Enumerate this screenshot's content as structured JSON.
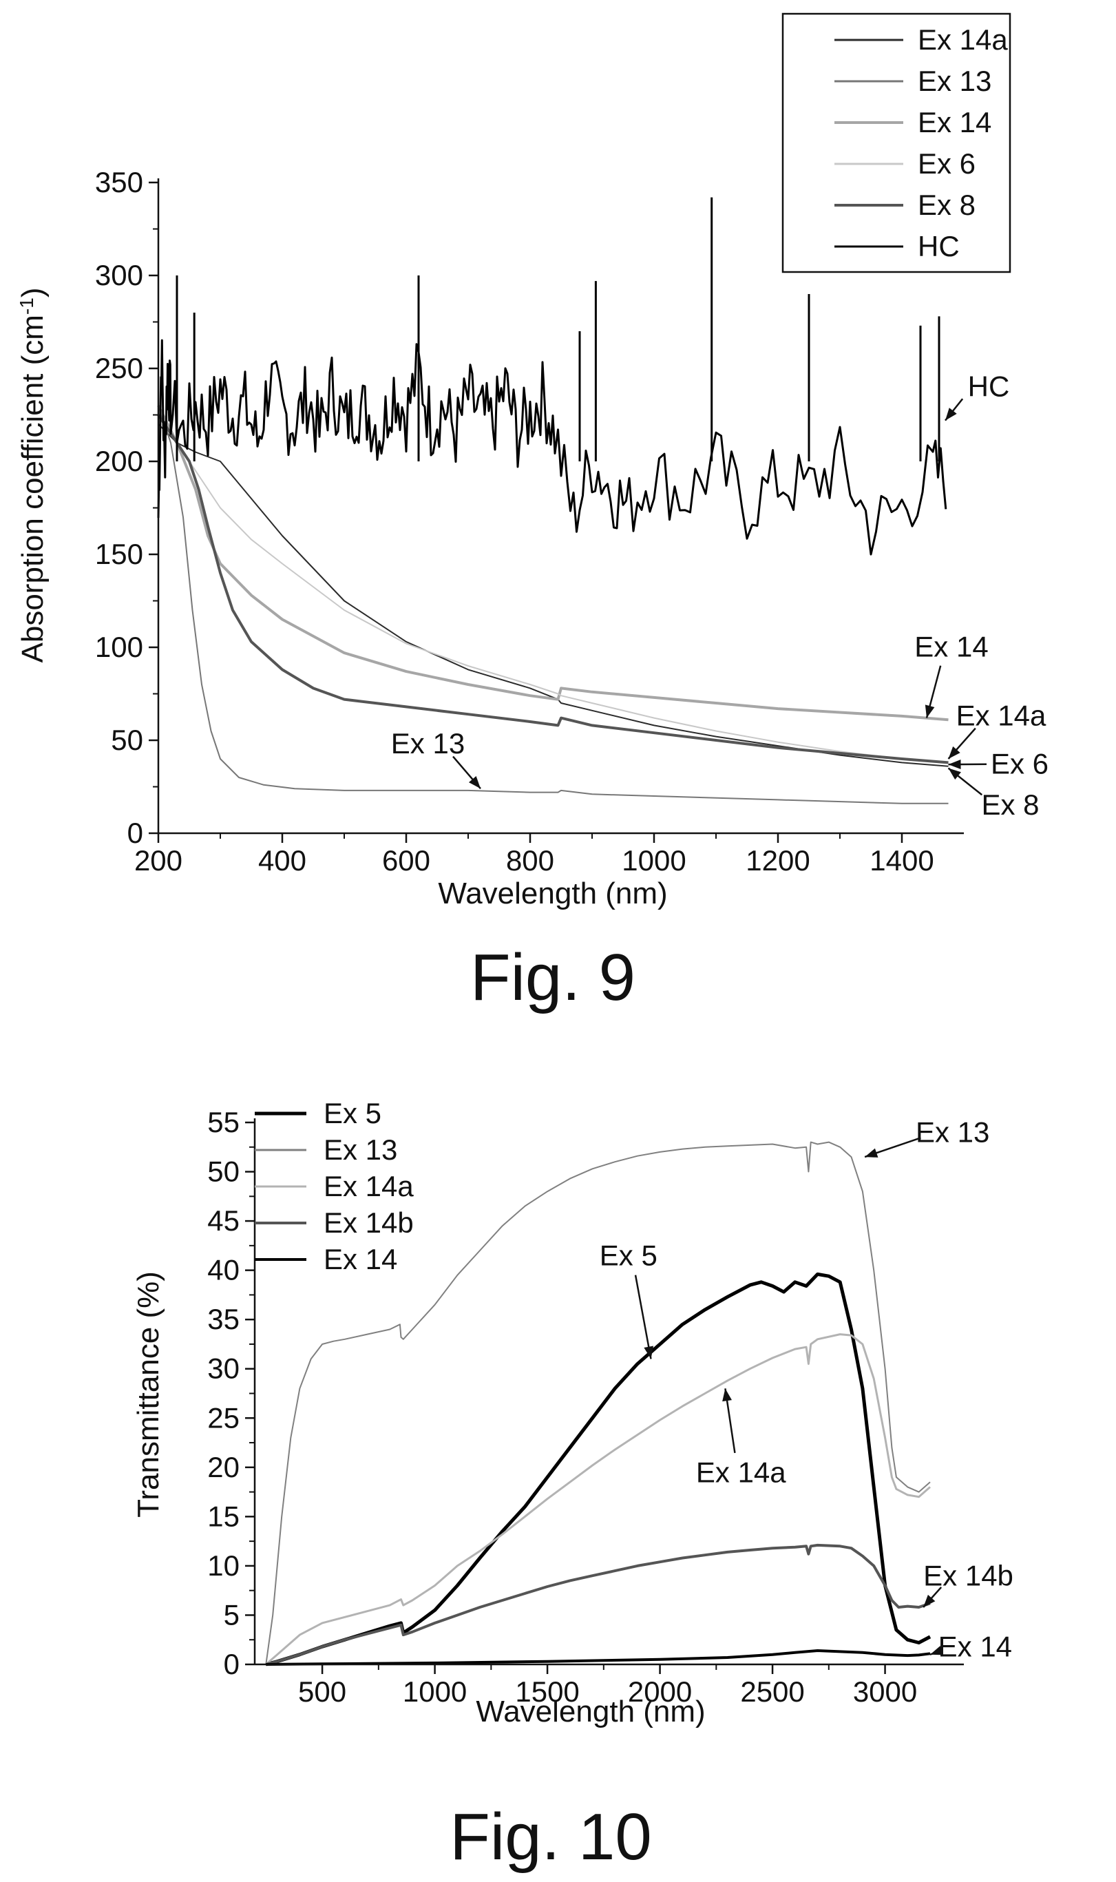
{
  "charts": [
    {
      "id": "fig9",
      "caption": "Fig. 9",
      "chart_data": {
        "type": "line",
        "title": "",
        "xlabel": "Wavelength (nm)",
        "ylabel_main": "Absorption coefficient (cm",
        "ylabel_sup": "-1",
        "ylabel_close": ")",
        "xlim": [
          200,
          1500
        ],
        "ylim": [
          0,
          350
        ],
        "xticks": [
          200,
          400,
          600,
          800,
          1000,
          1200,
          1400
        ],
        "yticks": [
          0,
          50,
          100,
          150,
          200,
          250,
          300,
          350
        ],
        "legend_position": "top-right",
        "grid": false,
        "series": [
          {
            "name": "Ex 14a",
            "color": "#2b2b2b",
            "width": 2,
            "x": [
              200,
              230,
              260,
              300,
              350,
              400,
              500,
              600,
              700,
              800,
              845,
              850,
              900,
              1000,
              1100,
              1200,
              1300,
              1400,
              1475
            ],
            "y": [
              220,
              210,
              205,
              200,
              180,
              160,
              125,
              103,
              88,
              78,
              72,
              70,
              66,
              58,
              52,
              47,
              42,
              38,
              36
            ]
          },
          {
            "name": "Ex 13",
            "color": "#777777",
            "width": 2,
            "x": [
              200,
              220,
              240,
              255,
              270,
              285,
              300,
              330,
              370,
              420,
              500,
              600,
              700,
              800,
              845,
              850,
              900,
              1000,
              1200,
              1400,
              1475
            ],
            "y": [
              230,
              210,
              170,
              120,
              80,
              55,
              40,
              30,
              26,
              24,
              23,
              23,
              23,
              22,
              22,
              23,
              21,
              20,
              18,
              16,
              16
            ]
          },
          {
            "name": "Ex 14",
            "color": "#a6a6a6",
            "width": 4,
            "x": [
              200,
              230,
              260,
              280,
              300,
              350,
              400,
              500,
              600,
              700,
              800,
              845,
              850,
              900,
              1000,
              1100,
              1200,
              1300,
              1400,
              1475
            ],
            "y": [
              230,
              210,
              185,
              160,
              145,
              128,
              115,
              97,
              87,
              80,
              74,
              72,
              78,
              76,
              73,
              70,
              67,
              65,
              63,
              61
            ]
          },
          {
            "name": "Ex 6",
            "color": "#c8c8c8",
            "width": 2,
            "x": [
              200,
              230,
              260,
              280,
              300,
              350,
              400,
              500,
              600,
              700,
              800,
              845,
              850,
              900,
              1000,
              1100,
              1200,
              1300,
              1400,
              1475
            ],
            "y": [
              225,
              210,
              195,
              185,
              175,
              158,
              145,
              120,
              102,
              90,
              80,
              75,
              74,
              70,
              62,
              55,
              49,
              44,
              40,
              38
            ]
          },
          {
            "name": "Ex 8",
            "color": "#555555",
            "width": 4,
            "x": [
              200,
              230,
              250,
              265,
              280,
              300,
              320,
              350,
              400,
              450,
              500,
              600,
              700,
              800,
              845,
              850,
              900,
              1000,
              1100,
              1200,
              1300,
              1400,
              1475
            ],
            "y": [
              225,
              210,
              200,
              185,
              165,
              140,
              120,
              103,
              88,
              78,
              72,
              68,
              64,
              60,
              58,
              62,
              58,
              54,
              50,
              46,
              43,
              40,
              38
            ]
          },
          {
            "name": "HC",
            "color": "#000000",
            "width": 3,
            "style": "noisy",
            "x": [
              200,
              205,
              210,
              215,
              220,
              240,
              260,
              280,
              300,
              320,
              340,
              360,
              380,
              400,
              420,
              440,
              460,
              480,
              500,
              520,
              540,
              560,
              580,
              600,
              620,
              640,
              660,
              680,
              700,
              720,
              740,
              760,
              780,
              800,
              820,
              840,
              870,
              900,
              930,
              960,
              1000,
              1050,
              1100,
              1150,
              1200,
              1250,
              1300,
              1350,
              1400,
              1450,
              1475
            ],
            "y": [
              170,
              260,
              200,
              250,
              230,
              215,
              230,
              220,
              240,
              225,
              230,
              210,
              245,
              225,
              220,
              235,
              215,
              240,
              220,
              230,
              225,
              215,
              240,
              225,
              250,
              220,
              230,
              215,
              235,
              225,
              220,
              240,
              215,
              225,
              235,
              215,
              170,
              200,
              185,
              175,
              195,
              180,
              200,
              175,
              190,
              185,
              200,
              165,
              175,
              195,
              190
            ]
          }
        ],
        "spikes": [
          {
            "x": 230,
            "y": 300
          },
          {
            "x": 258,
            "y": 280
          },
          {
            "x": 620,
            "y": 300
          },
          {
            "x": 880,
            "y": 270
          },
          {
            "x": 906,
            "y": 297
          },
          {
            "x": 1093,
            "y": 342
          },
          {
            "x": 1250,
            "y": 290
          },
          {
            "x": 1430,
            "y": 273
          },
          {
            "x": 1460,
            "y": 278
          }
        ],
        "annotations": [
          {
            "text": "HC",
            "tx": 1540,
            "ty": 235,
            "ax": 1470,
            "ay": 222
          },
          {
            "text": "Ex 14",
            "tx": 1480,
            "ty": 95,
            "ax": 1440,
            "ay": 62
          },
          {
            "text": "Ex 14a",
            "tx": 1560,
            "ty": 58,
            "ax": 1475,
            "ay": 40
          },
          {
            "text": "Ex 6",
            "tx": 1590,
            "ty": 32,
            "ax": 1475,
            "ay": 37
          },
          {
            "text": "Ex 8",
            "tx": 1575,
            "ty": 10,
            "ax": 1475,
            "ay": 35
          },
          {
            "text": "Ex 13",
            "tx": 635,
            "ty": 43,
            "ax": 720,
            "ay": 24
          }
        ]
      }
    },
    {
      "id": "fig10",
      "caption": "Fig. 10",
      "chart_data": {
        "type": "line",
        "title": "",
        "xlabel": "Wavelength (nm)",
        "ylabel": "Transmittance (%)",
        "xlim": [
          200,
          3350
        ],
        "ylim": [
          0,
          55
        ],
        "xticks": [
          500,
          1000,
          1500,
          2000,
          2500,
          3000
        ],
        "yticks": [
          0,
          5,
          10,
          15,
          20,
          25,
          30,
          35,
          40,
          45,
          50,
          55
        ],
        "legend_position": "top-left",
        "grid": false,
        "series": [
          {
            "name": "Ex 5",
            "color": "#000000",
            "width": 5,
            "x": [
              250,
              300,
              400,
              500,
              600,
              700,
              800,
              850,
              860,
              900,
              1000,
              1100,
              1200,
              1300,
              1400,
              1500,
              1600,
              1700,
              1800,
              1900,
              2000,
              2100,
              2200,
              2300,
              2400,
              2450,
              2500,
              2550,
              2600,
              2650,
              2700,
              2750,
              2800,
              2850,
              2900,
              2950,
              3000,
              3050,
              3100,
              3150,
              3200
            ],
            "y": [
              0,
              0.3,
              1,
              1.8,
              2.5,
              3.2,
              3.9,
              4.2,
              3.2,
              3.8,
              5.5,
              8,
              10.8,
              13.5,
              16,
              19,
              22,
              25,
              28,
              30.5,
              32.5,
              34.5,
              36,
              37.3,
              38.5,
              38.8,
              38.4,
              37.8,
              38.8,
              38.4,
              39.6,
              39.4,
              38.8,
              34,
              28,
              18,
              8,
              3.5,
              2.5,
              2.2,
              2.8
            ]
          },
          {
            "name": "Ex 13",
            "color": "#808080",
            "width": 2,
            "x": [
              250,
              280,
              320,
              360,
              400,
              450,
              500,
              550,
              600,
              700,
              800,
              845,
              850,
              860,
              900,
              1000,
              1100,
              1200,
              1300,
              1400,
              1500,
              1600,
              1700,
              1800,
              1900,
              2000,
              2100,
              2200,
              2300,
              2400,
              2500,
              2600,
              2650,
              2660,
              2670,
              2700,
              2750,
              2800,
              2850,
              2900,
              2950,
              3000,
              3030,
              3050,
              3100,
              3150,
              3200
            ],
            "y": [
              0,
              5,
              15,
              23,
              28,
              31,
              32.5,
              32.8,
              33,
              33.5,
              34,
              34.5,
              33.2,
              33,
              34,
              36.5,
              39.5,
              42,
              44.5,
              46.5,
              48,
              49.3,
              50.3,
              51,
              51.6,
              52,
              52.3,
              52.5,
              52.6,
              52.7,
              52.8,
              52.4,
              52.5,
              50,
              53,
              52.8,
              53,
              52.5,
              51.5,
              48,
              40,
              30,
              22,
              19,
              18,
              17.5,
              18.5
            ]
          },
          {
            "name": "Ex 14a",
            "color": "#b3b3b3",
            "width": 3,
            "x": [
              250,
              300,
              400,
              500,
              600,
              700,
              800,
              850,
              860,
              900,
              1000,
              1100,
              1200,
              1300,
              1400,
              1500,
              1600,
              1700,
              1800,
              1900,
              2000,
              2100,
              2200,
              2300,
              2400,
              2500,
              2600,
              2650,
              2660,
              2670,
              2700,
              2800,
              2850,
              2900,
              2950,
              3000,
              3030,
              3050,
              3100,
              3150,
              3200
            ],
            "y": [
              0,
              1,
              3,
              4.2,
              4.8,
              5.4,
              6,
              6.6,
              6,
              6.5,
              8,
              10,
              11.5,
              13.2,
              15,
              16.8,
              18.5,
              20.2,
              21.8,
              23.3,
              24.8,
              26.2,
              27.5,
              28.8,
              30,
              31.1,
              32,
              32.2,
              30.5,
              32.5,
              33,
              33.5,
              33.4,
              32.5,
              29,
              23,
              19,
              17.8,
              17.2,
              17,
              18
            ]
          },
          {
            "name": "Ex 14b",
            "color": "#555555",
            "width": 4,
            "x": [
              250,
              300,
              400,
              500,
              600,
              700,
              800,
              850,
              860,
              900,
              1000,
              1100,
              1200,
              1300,
              1400,
              1500,
              1600,
              1700,
              1800,
              1900,
              2000,
              2100,
              2200,
              2300,
              2400,
              2500,
              2600,
              2650,
              2660,
              2670,
              2700,
              2800,
              2850,
              2900,
              2950,
              3000,
              3030,
              3060,
              3100,
              3150,
              3200
            ],
            "y": [
              0,
              0.3,
              1,
              1.8,
              2.5,
              3.1,
              3.7,
              4,
              3,
              3.3,
              4.2,
              5,
              5.8,
              6.5,
              7.2,
              7.9,
              8.5,
              9,
              9.5,
              10,
              10.4,
              10.8,
              11.1,
              11.4,
              11.6,
              11.8,
              11.9,
              12,
              11.2,
              12,
              12.1,
              12,
              11.8,
              11,
              10,
              8,
              6.5,
              5.8,
              5.9,
              5.8,
              6.2
            ]
          },
          {
            "name": "Ex 14",
            "color": "#000000",
            "width": 4,
            "x": [
              250,
              500,
              1000,
              1500,
              2000,
              2300,
              2500,
              2600,
              2700,
              2800,
              2900,
              3000,
              3100,
              3150,
              3200
            ],
            "y": [
              0,
              0.05,
              0.15,
              0.3,
              0.5,
              0.7,
              1,
              1.2,
              1.4,
              1.3,
              1.2,
              1,
              0.9,
              0.95,
              1.1
            ]
          }
        ],
        "annotations": [
          {
            "text": "Ex 13",
            "tx": 3300,
            "ty": 53,
            "ax": 2910,
            "ay": 51.5
          },
          {
            "text": "Ex 5",
            "tx": 1860,
            "ty": 40.5,
            "ax": 1960,
            "ay": 31
          },
          {
            "text": "Ex 14a",
            "tx": 2360,
            "ty": 18.5,
            "ax": 2290,
            "ay": 28
          },
          {
            "text": "Ex 14b",
            "tx": 3370,
            "ty": 8,
            "ax": 3170,
            "ay": 5.8
          },
          {
            "text": "Ex 14",
            "tx": 3400,
            "ty": 0.8,
            "ax": 3200,
            "ay": 1
          }
        ]
      }
    }
  ]
}
